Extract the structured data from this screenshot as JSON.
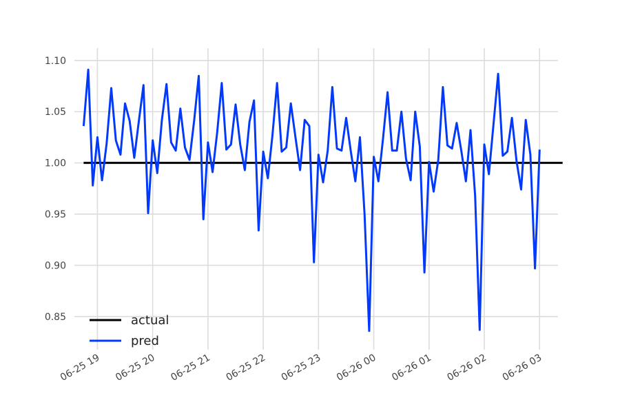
{
  "chart_data": {
    "type": "line",
    "title": "",
    "xlabel": "",
    "ylabel": "",
    "x_ticks": [
      "06-25 19",
      "06-25 20",
      "06-25 21",
      "06-25 22",
      "06-25 23",
      "06-26 00",
      "06-26 01",
      "06-26 02",
      "06-26 03"
    ],
    "y_ticks": [
      "0.85",
      "0.90",
      "0.95",
      "1.00",
      "1.05",
      "1.10"
    ],
    "xlim": [
      "06-25 18:35",
      "06-26 03:20"
    ],
    "ylim": [
      0.823,
      1.112
    ],
    "grid": true,
    "legend_position": "lower-left",
    "x_interval_minutes": 5,
    "x_start": "06-25 18:45",
    "series": [
      {
        "name": "actual",
        "color": "#000000",
        "values": [
          1.0,
          1.0,
          1.0,
          1.0,
          1.0,
          1.0,
          1.0,
          1.0,
          1.0,
          1.0,
          1.0,
          1.0,
          1.0,
          1.0,
          1.0,
          1.0,
          1.0,
          1.0,
          1.0,
          1.0,
          1.0,
          1.0,
          1.0,
          1.0,
          1.0,
          1.0,
          1.0,
          1.0,
          1.0,
          1.0,
          1.0,
          1.0,
          1.0,
          1.0,
          1.0,
          1.0,
          1.0,
          1.0,
          1.0,
          1.0,
          1.0,
          1.0,
          1.0,
          1.0,
          1.0,
          1.0,
          1.0,
          1.0,
          1.0,
          1.0,
          1.0,
          1.0,
          1.0,
          1.0,
          1.0,
          1.0,
          1.0,
          1.0,
          1.0,
          1.0,
          1.0,
          1.0,
          1.0,
          1.0,
          1.0,
          1.0,
          1.0,
          1.0,
          1.0,
          1.0,
          1.0,
          1.0,
          1.0,
          1.0,
          1.0,
          1.0,
          1.0,
          1.0,
          1.0,
          1.0,
          1.0,
          1.0,
          1.0,
          1.0,
          1.0,
          1.0,
          1.0,
          1.0,
          1.0,
          1.0,
          1.0,
          1.0,
          1.0,
          1.0,
          1.0,
          1.0,
          1.0,
          1.0,
          1.0,
          1.0,
          1.0,
          1.0,
          1.0,
          1.0,
          1.0
        ]
      },
      {
        "name": "pred",
        "color": "#0339f8",
        "values": [
          1.036,
          1.091,
          0.978,
          1.025,
          0.983,
          1.019,
          1.073,
          1.022,
          1.008,
          1.058,
          1.041,
          1.005,
          1.041,
          1.076,
          0.951,
          1.022,
          0.99,
          1.042,
          1.077,
          1.02,
          1.012,
          1.053,
          1.015,
          1.003,
          1.041,
          1.085,
          0.945,
          1.02,
          0.991,
          1.03,
          1.078,
          1.013,
          1.018,
          1.057,
          1.018,
          0.993,
          1.04,
          1.061,
          0.934,
          1.011,
          0.985,
          1.027,
          1.078,
          1.011,
          1.015,
          1.058,
          1.025,
          0.993,
          1.042,
          1.036,
          0.903,
          1.008,
          0.981,
          1.012,
          1.074,
          1.014,
          1.012,
          1.044,
          1.012,
          0.982,
          1.025,
          0.95,
          0.836,
          1.006,
          0.982,
          1.023,
          1.069,
          1.012,
          1.012,
          1.05,
          1.004,
          0.983,
          1.05,
          1.016,
          0.893,
          1.001,
          0.972,
          1.003,
          1.074,
          1.017,
          1.014,
          1.039,
          1.012,
          0.982,
          1.032,
          0.968,
          0.837,
          1.018,
          0.989,
          1.038,
          1.087,
          1.007,
          1.011,
          1.044,
          1.002,
          0.974,
          1.042,
          1.008,
          0.897,
          1.013
        ]
      }
    ]
  }
}
